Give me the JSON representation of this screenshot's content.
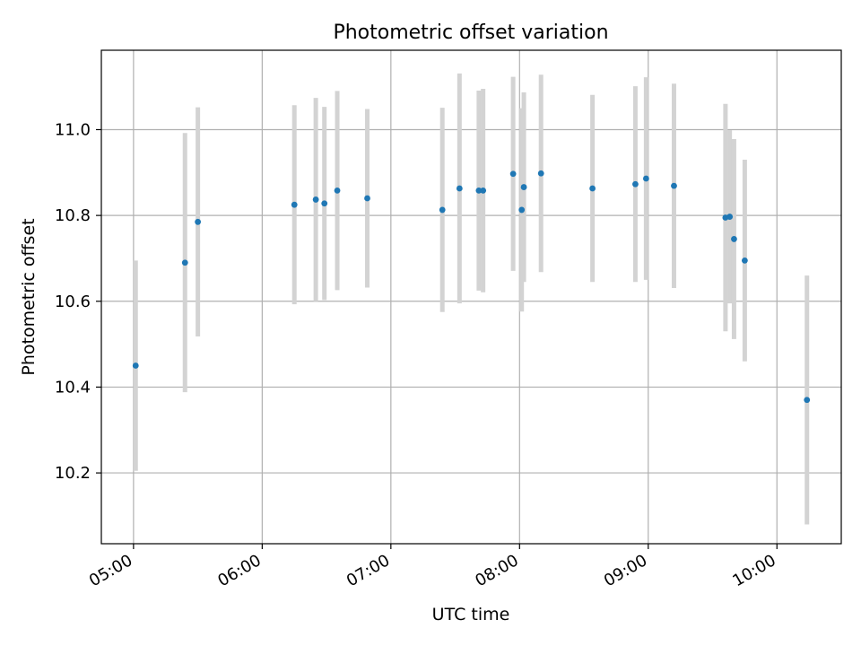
{
  "chart_data": {
    "type": "scatter",
    "title": "Photometric offset variation",
    "xlabel": "UTC time",
    "ylabel": "Photometric offset",
    "x_unit": "UTC time of day (HH:MM)",
    "xlim": [
      "04:45",
      "10:30"
    ],
    "ylim": [
      10.035,
      11.185
    ],
    "grid": true,
    "xticks": [
      "05:00",
      "06:00",
      "07:00",
      "08:00",
      "09:00",
      "10:00"
    ],
    "yticks": [
      "10.2",
      "10.4",
      "10.6",
      "10.8",
      "11.0"
    ],
    "series": [
      {
        "marker_color": "#1f77b4",
        "errorbar_color": "#d3d3d3",
        "points": [
          {
            "x": "05:01",
            "y": 10.45,
            "err": 0.245
          },
          {
            "x": "05:24",
            "y": 10.69,
            "err": 0.302
          },
          {
            "x": "05:30",
            "y": 10.785,
            "err": 0.267
          },
          {
            "x": "06:15",
            "y": 10.825,
            "err": 0.232
          },
          {
            "x": "06:25",
            "y": 10.837,
            "err": 0.237
          },
          {
            "x": "06:29",
            "y": 10.828,
            "err": 0.225
          },
          {
            "x": "06:35",
            "y": 10.858,
            "err": 0.232
          },
          {
            "x": "06:49",
            "y": 10.84,
            "err": 0.208
          },
          {
            "x": "07:24",
            "y": 10.813,
            "err": 0.238
          },
          {
            "x": "07:32",
            "y": 10.863,
            "err": 0.268
          },
          {
            "x": "07:41",
            "y": 10.858,
            "err": 0.233
          },
          {
            "x": "07:43",
            "y": 10.858,
            "err": 0.237
          },
          {
            "x": "07:57",
            "y": 10.897,
            "err": 0.226
          },
          {
            "x": "08:01",
            "y": 10.813,
            "err": 0.237
          },
          {
            "x": "08:02",
            "y": 10.866,
            "err": 0.221
          },
          {
            "x": "08:10",
            "y": 10.898,
            "err": 0.23
          },
          {
            "x": "08:34",
            "y": 10.863,
            "err": 0.218
          },
          {
            "x": "08:54",
            "y": 10.873,
            "err": 0.228
          },
          {
            "x": "08:59",
            "y": 10.886,
            "err": 0.236
          },
          {
            "x": "09:12",
            "y": 10.869,
            "err": 0.238
          },
          {
            "x": "09:36",
            "y": 10.795,
            "err": 0.265
          },
          {
            "x": "09:38",
            "y": 10.797,
            "err": 0.202
          },
          {
            "x": "09:40",
            "y": 10.745,
            "err": 0.233
          },
          {
            "x": "09:45",
            "y": 10.695,
            "err": 0.235
          },
          {
            "x": "10:14",
            "y": 10.37,
            "err": 0.29
          }
        ]
      }
    ]
  }
}
